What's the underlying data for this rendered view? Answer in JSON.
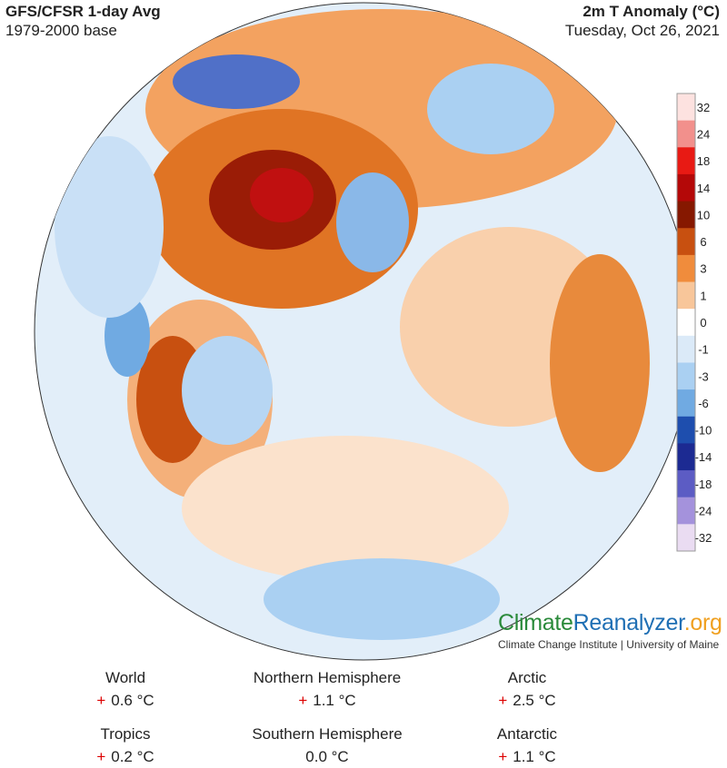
{
  "header": {
    "title": "GFS/CFSR 1-day Avg",
    "subtitle": "1979-2000 base",
    "variable": "2m T Anomaly (°C)",
    "date": "Tuesday, Oct 26, 2021"
  },
  "legend": {
    "labels": [
      "32",
      "24",
      "18",
      "14",
      "10",
      "6",
      "3",
      "1",
      "0",
      "-1",
      "-3",
      "-6",
      "-10",
      "-14",
      "-18",
      "-24",
      "-32"
    ],
    "colors": [
      "#fde2e0",
      "#f2908c",
      "#e81a14",
      "#b40808",
      "#861800",
      "#c85010",
      "#f08c3c",
      "#f8c69a",
      "#ffffff",
      "#dbeaf8",
      "#aad0f2",
      "#70aae2",
      "#1e4eae",
      "#1c2a92",
      "#5c5cc4",
      "#a492dc",
      "#eadcf2"
    ]
  },
  "brand": {
    "part1": "Climate",
    "part2": "Reanalyzer",
    "part3": ".org",
    "tagline": "Climate Change Institute | University of Maine"
  },
  "stats": [
    {
      "region": "World",
      "sign": "+",
      "value": "0.6 °C"
    },
    {
      "region": "Northern Hemisphere",
      "sign": "+",
      "value": "1.1 °C"
    },
    {
      "region": "Arctic",
      "sign": "+",
      "value": "2.5 °C"
    },
    {
      "region": "Tropics",
      "sign": "+",
      "value": "0.2 °C"
    },
    {
      "region": "Southern Hemisphere",
      "sign": null,
      "value": "0.0 °C"
    },
    {
      "region": "Antarctic",
      "sign": "+",
      "value": "1.1 °C"
    }
  ]
}
